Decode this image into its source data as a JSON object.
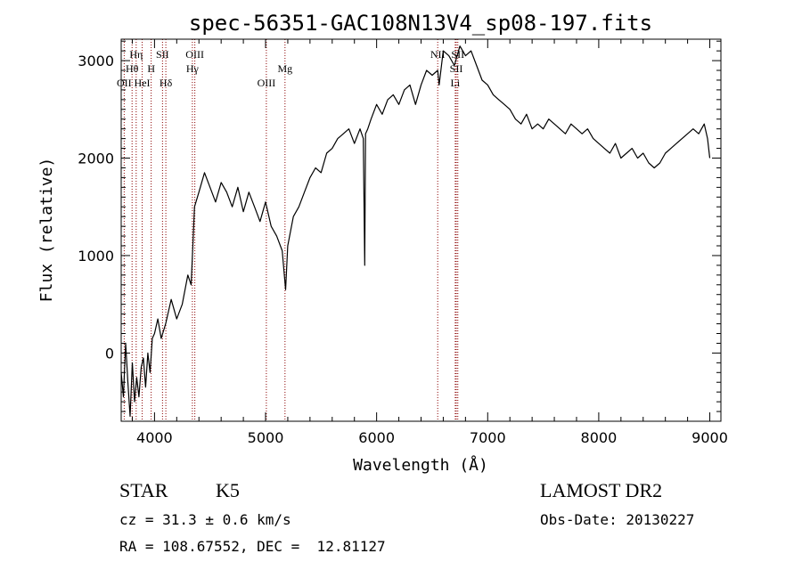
{
  "chart_data": {
    "type": "line",
    "title": "spec-56351-GAC108N13V4_sp08-197.fits",
    "xlabel": "Wavelength (Å)",
    "ylabel": "Flux (relative)",
    "xlim": [
      3700,
      9100
    ],
    "ylim": [
      -700,
      3220
    ],
    "x_ticks": [
      4000,
      5000,
      6000,
      7000,
      8000,
      9000
    ],
    "y_ticks": [
      0,
      1000,
      2000,
      3000
    ],
    "x_tick_labels": [
      "4000",
      "5000",
      "6000",
      "7000",
      "8000",
      "9000"
    ],
    "y_tick_labels": [
      "0",
      "1000",
      "2000",
      "3000"
    ],
    "line_color": "#000000",
    "marker_color": "#8b0000",
    "series": [
      {
        "x": [
          3700,
          3720,
          3740,
          3760,
          3780,
          3800,
          3820,
          3840,
          3860,
          3880,
          3900,
          3920,
          3940,
          3960,
          3980,
          4000,
          4030,
          4060,
          4100,
          4150,
          4200,
          4250,
          4300,
          4330,
          4360,
          4400,
          4450,
          4500,
          4550,
          4600,
          4650,
          4700,
          4750,
          4800,
          4850,
          4900,
          4950,
          5000,
          5050,
          5100,
          5150,
          5180,
          5200,
          5250,
          5300,
          5350,
          5400,
          5450,
          5500,
          5550,
          5600,
          5650,
          5700,
          5750,
          5800,
          5850,
          5880,
          5893,
          5900,
          5920,
          5950,
          6000,
          6050,
          6100,
          6150,
          6200,
          6250,
          6300,
          6350,
          6400,
          6450,
          6500,
          6550,
          6563,
          6600,
          6650,
          6700,
          6750,
          6800,
          6850,
          6900,
          6950,
          7000,
          7050,
          7100,
          7150,
          7200,
          7250,
          7300,
          7350,
          7400,
          7450,
          7500,
          7550,
          7600,
          7650,
          7700,
          7750,
          7800,
          7850,
          7900,
          7950,
          8000,
          8050,
          8100,
          8150,
          8200,
          8250,
          8300,
          8350,
          8400,
          8450,
          8500,
          8550,
          8600,
          8650,
          8700,
          8750,
          8800,
          8850,
          8900,
          8950,
          8980,
          9000
        ],
        "y": [
          -200,
          -450,
          100,
          -300,
          -650,
          -100,
          -500,
          -250,
          -450,
          -150,
          -50,
          -350,
          0,
          -200,
          150,
          200,
          350,
          150,
          300,
          550,
          350,
          500,
          800,
          700,
          1500,
          1650,
          1850,
          1700,
          1550,
          1750,
          1650,
          1500,
          1700,
          1450,
          1650,
          1500,
          1350,
          1550,
          1300,
          1200,
          1050,
          650,
          1100,
          1400,
          1500,
          1650,
          1800,
          1900,
          1850,
          2050,
          2100,
          2200,
          2250,
          2300,
          2150,
          2300,
          2200,
          900,
          2250,
          2300,
          2400,
          2550,
          2450,
          2600,
          2650,
          2550,
          2700,
          2750,
          2550,
          2750,
          2900,
          2850,
          2900,
          2750,
          3100,
          3050,
          2950,
          3150,
          3050,
          3100,
          2950,
          2800,
          2750,
          2650,
          2600,
          2550,
          2500,
          2400,
          2350,
          2450,
          2300,
          2350,
          2300,
          2400,
          2350,
          2300,
          2250,
          2350,
          2300,
          2250,
          2300,
          2200,
          2150,
          2100,
          2050,
          2150,
          2000,
          2050,
          2100,
          2000,
          2050,
          1950,
          1900,
          1950,
          2050,
          2100,
          2150,
          2200,
          2250,
          2300,
          2250,
          2350,
          2200,
          2000
        ]
      }
    ],
    "line_markers": [
      {
        "wavelength": 3727,
        "label": "OII",
        "row": 3
      },
      {
        "wavelength": 3798,
        "label": "Hθ",
        "row": 2
      },
      {
        "wavelength": 3835,
        "label": "Hη",
        "row": 1
      },
      {
        "wavelength": 3889,
        "label": "HeI",
        "row": 3
      },
      {
        "wavelength": 3970,
        "label": "H",
        "row": 2
      },
      {
        "wavelength": 4072,
        "label": "SII",
        "row": 1
      },
      {
        "wavelength": 4102,
        "label": "Hδ",
        "row": 3
      },
      {
        "wavelength": 4341,
        "label": "Hγ",
        "row": 2
      },
      {
        "wavelength": 4363,
        "label": "OIII",
        "row": 1
      },
      {
        "wavelength": 5007,
        "label": "OIII",
        "row": 3
      },
      {
        "wavelength": 5175,
        "label": "Mg",
        "row": 2
      },
      {
        "wavelength": 6550,
        "label": "NII",
        "row": 1
      },
      {
        "wavelength": 6708,
        "label": "Li",
        "row": 3
      },
      {
        "wavelength": 6717,
        "label": "SII",
        "row": 2
      },
      {
        "wavelength": 6731,
        "label": "SII",
        "row": 1
      }
    ]
  },
  "info": {
    "class_label": "STAR",
    "subclass_label": "K5",
    "survey": "LAMOST DR2",
    "redshift_line": "cz = 31.3 ± 0.6 km/s",
    "obs_date": "Obs-Date: 20130227",
    "coords": "RA = 108.67552, DEC =  12.81127"
  }
}
